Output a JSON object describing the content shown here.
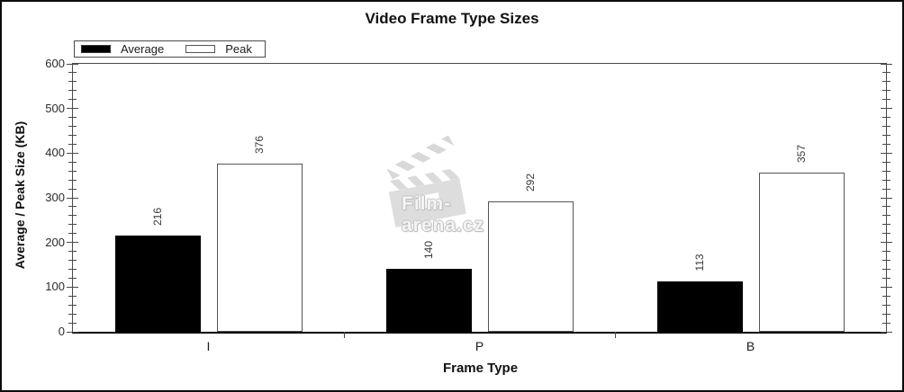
{
  "window": {
    "background": "#ffffff",
    "border_color": "#0d0d0d"
  },
  "watermark": {
    "text": "Film-arena.cz",
    "icon": "clapperboard-icon",
    "color": "#c3c3c3"
  },
  "legend": {
    "position": "top-left",
    "items": [
      {
        "label": "Average",
        "fill": "#000000",
        "stroke": "#333333"
      },
      {
        "label": "Peak",
        "fill": "#ffffff",
        "stroke": "#555555"
      }
    ]
  },
  "chart_data": {
    "type": "bar",
    "title": "Video Frame Type Sizes",
    "xlabel": "Frame Type",
    "ylabel": "Average / Peak Size (KB)",
    "categories": [
      "I",
      "P",
      "B"
    ],
    "series": [
      {
        "name": "Average",
        "values": [
          216,
          140,
          113
        ],
        "fill": "#000000",
        "stroke": "#000000"
      },
      {
        "name": "Peak",
        "values": [
          376,
          292,
          357
        ],
        "fill": "#ffffff",
        "stroke": "#555555"
      }
    ],
    "ylim": [
      0,
      600
    ],
    "ytick_step": 100,
    "yminor_step": 20,
    "ytick_labels": [
      "0",
      "100",
      "200",
      "300",
      "400",
      "500",
      "600"
    ],
    "bar_value_labels": true,
    "legend_position": "top-left",
    "grid": false,
    "axis_color": "#4a4a4a",
    "text_color": "#2b2b2b",
    "value_label_color": "#3a3a3a"
  }
}
